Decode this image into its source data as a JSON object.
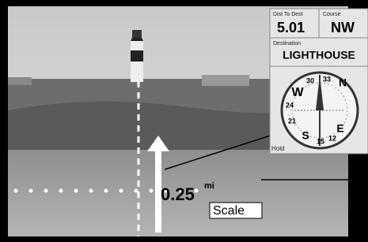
{
  "gps_screen": {
    "distance_field": {
      "label": "Dist To Dest",
      "value": "5.01"
    },
    "course_field": {
      "label": "Course",
      "value": "NW"
    },
    "destination": {
      "label": "Destination",
      "value": "LIGHTHOUSE"
    },
    "compass_labels": {
      "north": "N",
      "west": "W",
      "east": "E",
      "south": "S",
      "n30": "30",
      "n33": "33",
      "n24": "24",
      "n21": "21",
      "n15": "15",
      "n12": "12"
    },
    "footer": "Hold"
  },
  "scale": {
    "value": "0.25",
    "unit": "mi",
    "label": "Scale"
  }
}
